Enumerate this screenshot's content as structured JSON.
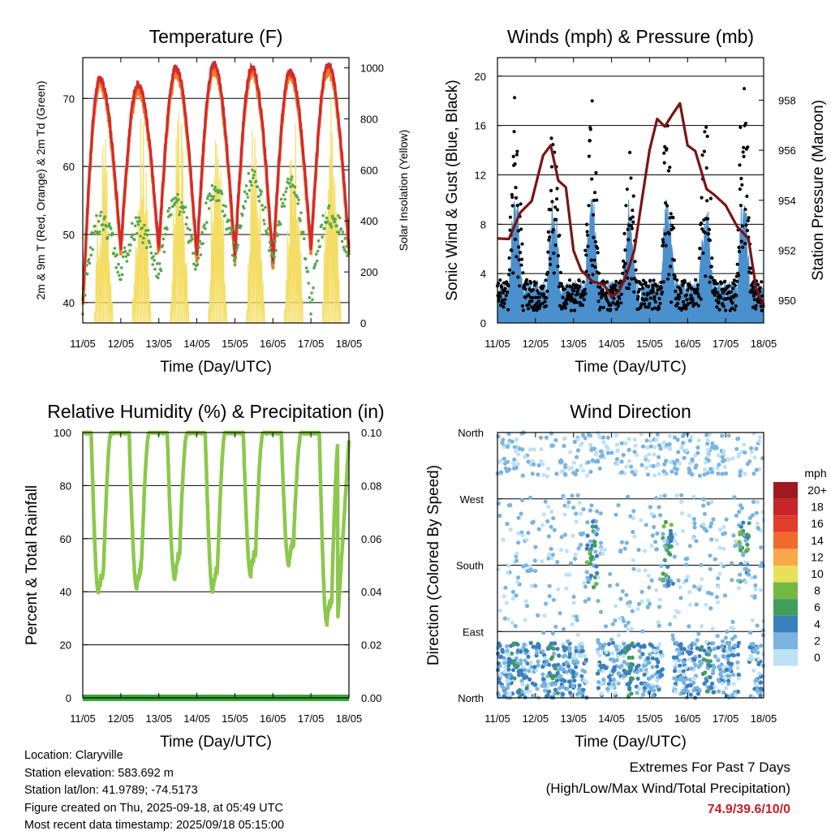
{
  "chart_data": [
    {
      "type": "line",
      "title": "Temperature (F)",
      "xlabel": "Time (Day/UTC)",
      "ylabel": "2m & 9m T (Red, Orange) & 2m Td (Green)",
      "ylabel_right": "Solar Insolation (Yellow)",
      "x_ticks": [
        "11/05",
        "12/05",
        "13/05",
        "14/05",
        "15/05",
        "16/05",
        "17/05",
        "18/05"
      ],
      "xlim": [
        0,
        7
      ],
      "ylim": [
        37,
        76
      ],
      "yticks": [
        40,
        50,
        60,
        70
      ],
      "y2lim": [
        0,
        1040
      ],
      "y2ticks": [
        0,
        200,
        400,
        600,
        800,
        1000
      ],
      "grid": true,
      "series": [
        {
          "color": "#d42a2a",
          "x_unit": "days since 11/05",
          "min": [
            40,
            48,
            48,
            47,
            47,
            46,
            48
          ],
          "max": [
            73,
            72,
            74.5,
            75,
            74.5,
            74,
            75
          ]
        },
        {
          "color": "#f07b2a",
          "offset": 0.5
        },
        {
          "color": "#55a84a",
          "min": [
            40,
            44,
            44,
            44,
            47,
            46,
            40
          ],
          "max": [
            52,
            51,
            55,
            56,
            58,
            57,
            53
          ]
        },
        {
          "color": "#f4dd64",
          "axis": "right",
          "peak": [
            800,
            870,
            860,
            900,
            920,
            880,
            1000
          ]
        }
      ]
    },
    {
      "type": "line",
      "title": "Winds (mph) & Pressure (mb)",
      "xlabel": "Time (Day/UTC)",
      "ylabel": "Sonic Wind & Gust (Blue, Black)",
      "ylabel_right": "Station Pressure (Maroon)",
      "x_ticks": [
        "11/05",
        "12/05",
        "13/05",
        "14/05",
        "15/05",
        "16/05",
        "17/05",
        "18/05"
      ],
      "xlim": [
        0,
        7
      ],
      "ylim": [
        0,
        21.5
      ],
      "yticks": [
        0,
        4,
        8,
        12,
        16,
        20
      ],
      "y2lim": [
        949.1,
        959.7
      ],
      "y2ticks": [
        950,
        952,
        954,
        956,
        958
      ],
      "grid": true,
      "series": [
        {
          "color": "#7a1414",
          "axis": "right",
          "x": [
            0,
            0.3,
            0.6,
            0.9,
            1.2,
            1.4,
            1.6,
            1.8,
            2.0,
            2.2,
            2.5,
            2.8,
            3.0,
            3.2,
            3.4,
            3.6,
            3.8,
            4.0,
            4.2,
            4.4,
            4.6,
            4.8,
            5.0,
            5.2,
            5.5,
            5.7,
            6.0,
            6.3,
            6.6,
            6.8,
            7.0
          ],
          "y": [
            952.5,
            952.5,
            953.5,
            954.0,
            955.8,
            956.2,
            954.8,
            954.5,
            952.0,
            951.2,
            950.8,
            950.7,
            950.2,
            950.3,
            951.0,
            952.0,
            954.0,
            956.0,
            957.2,
            957.0,
            957.4,
            957.8,
            956.2,
            956.0,
            954.5,
            954.2,
            953.8,
            953.0,
            952.5,
            950.5,
            949.7
          ]
        }
      ],
      "gust_peaks": [
        18.5,
        16.5,
        18.5,
        14,
        18,
        17,
        19.8
      ]
    },
    {
      "type": "line",
      "title": "Relative Humidity (%) & Precipitation (in)",
      "xlabel": "Time (Day/UTC)",
      "ylabel": "Percent & Total Rainfall",
      "x_ticks": [
        "11/05",
        "12/05",
        "13/05",
        "14/05",
        "15/05",
        "16/05",
        "17/05",
        "18/05"
      ],
      "xlim": [
        0,
        7
      ],
      "ylim": [
        0,
        100
      ],
      "yticks": [
        0,
        20,
        40,
        60,
        80,
        100
      ],
      "y2ticks": [
        "0.00",
        "0.02",
        "0.04",
        "0.06",
        "0.08",
        "0.10"
      ],
      "grid": true,
      "series": [
        {
          "color": "#8cc84b",
          "max": 100,
          "min": [
            39,
            41,
            45,
            40,
            46,
            50,
            28
          ]
        },
        {
          "color": "#3aa53a",
          "values_constant": 0
        }
      ]
    },
    {
      "type": "scatter",
      "title": "Wind Direction",
      "xlabel": "Time (Day/UTC)",
      "ylabel": "Direction (Colored By Speed)",
      "x_ticks": [
        "11/05",
        "12/05",
        "13/05",
        "14/05",
        "15/05",
        "16/05",
        "17/05",
        "18/05"
      ],
      "y_ticks": [
        "North",
        "East",
        "South",
        "West",
        "North"
      ],
      "xlim": [
        0,
        7
      ],
      "ylim": [
        0,
        360
      ],
      "legend": {
        "title": "mph",
        "position": "right",
        "labels": [
          "20+",
          "18",
          "16",
          "14",
          "12",
          "10",
          "8",
          "6",
          "4",
          "2",
          "0"
        ],
        "colors": [
          "#9e1a1f",
          "#c6252a",
          "#e23c2a",
          "#ef6a2c",
          "#f8a849",
          "#e8e05a",
          "#74b844",
          "#3f9e5c",
          "#3b7fbd",
          "#7ab4e0",
          "#bde1f5"
        ]
      }
    }
  ],
  "info": {
    "location": "Location: Claryville",
    "elevation": "Station elevation: 583.692 m",
    "latlon": "Station lat/lon: 41.9789; -74.5173",
    "created": "Figure created on Thu, 2025-09-18, at 05:49 UTC",
    "recent": "Most recent data timestamp: 2025/09/18 05:15:00"
  },
  "extremes": {
    "line1": "Extremes For Past 7 Days",
    "line2": "(High/Low/Max Wind/Total Precipitation)",
    "value": "74.9/39.6/10/0"
  }
}
